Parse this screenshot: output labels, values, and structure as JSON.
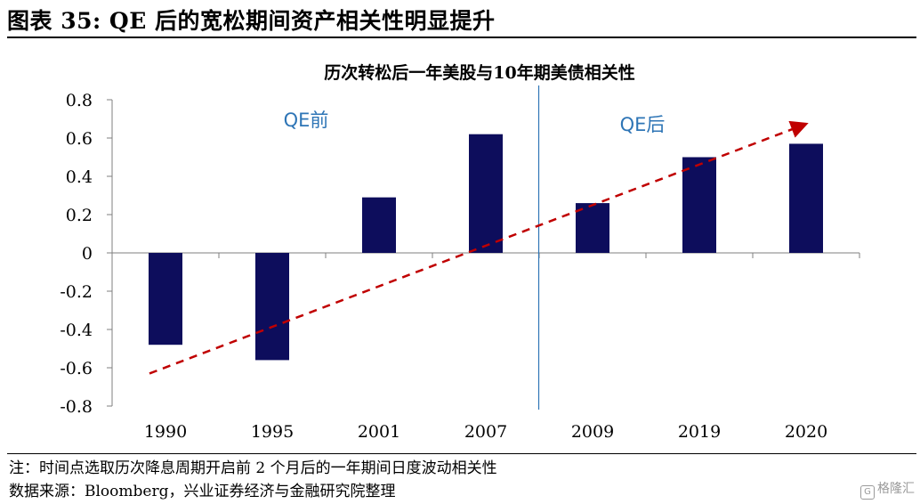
{
  "figure_title": "图表 35:  QE 后的宽松期间资产相关性明显提升",
  "notes": {
    "note": "注：时间点选取历次降息周期开启前 2 个月后的一年期间日度波动相关性",
    "source": "数据来源：Bloomberg，兴业证券经济与金融研究院整理"
  },
  "watermark": "格隆汇",
  "colors": {
    "bar": "#0d0d5c",
    "trend": "#c00000",
    "divider": "#2e75b6",
    "annotation": "#2e75b6"
  },
  "chart_data": {
    "type": "bar",
    "title": "历次转松后一年美股与10年期美债相关性",
    "categories": [
      "1990",
      "1995",
      "2001",
      "2007",
      "2009",
      "2019",
      "2020"
    ],
    "values": [
      -0.48,
      -0.56,
      0.29,
      0.62,
      0.26,
      0.5,
      0.57
    ],
    "ylim": [
      -0.8,
      0.8
    ],
    "yticks": [
      "-0.8",
      "-0.6",
      "-0.4",
      "-0.2",
      "0",
      "0.2",
      "0.4",
      "0.6",
      "0.8"
    ],
    "ytick_values": [
      -0.8,
      -0.6,
      -0.4,
      -0.2,
      0,
      0.2,
      0.4,
      0.6,
      0.8
    ],
    "xlabel": "",
    "ylabel": "",
    "annotations": {
      "before": "QE前",
      "after": "QE后"
    },
    "divider_after_category": "2007",
    "trend": {
      "start": -0.63,
      "end": 0.67
    }
  }
}
